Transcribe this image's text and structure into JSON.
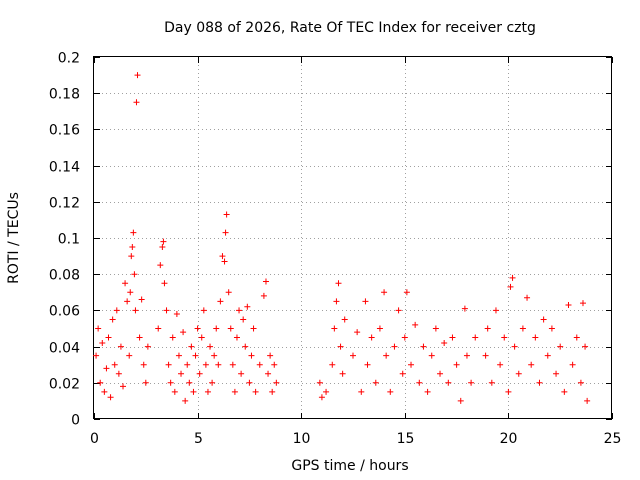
{
  "chart_data": {
    "type": "scatter",
    "title": "Day 088 of 2026, Rate Of TEC Index for receiver cztg",
    "xlabel": "GPS time / hours",
    "ylabel": "ROTI / TECUs",
    "xlim": [
      0,
      25
    ],
    "ylim": [
      0,
      0.2
    ],
    "x_ticks": [
      "0",
      "5",
      "10",
      "15",
      "20",
      "25"
    ],
    "y_ticks": [
      "0",
      "0.02",
      "0.04",
      "0.06",
      "0.08",
      "0.1",
      "0.12",
      "0.14",
      "0.16",
      "0.18",
      "0.2"
    ],
    "grid": true,
    "marker": "+",
    "color": "#ff0000",
    "series": [
      {
        "name": "ROTI",
        "points": [
          [
            0.1,
            0.035
          ],
          [
            0.2,
            0.05
          ],
          [
            0.3,
            0.02
          ],
          [
            0.4,
            0.042
          ],
          [
            0.5,
            0.015
          ],
          [
            0.6,
            0.028
          ],
          [
            0.7,
            0.045
          ],
          [
            0.8,
            0.012
          ],
          [
            0.9,
            0.055
          ],
          [
            1.0,
            0.03
          ],
          [
            1.1,
            0.06
          ],
          [
            1.2,
            0.025
          ],
          [
            1.3,
            0.04
          ],
          [
            1.4,
            0.018
          ],
          [
            1.5,
            0.075
          ],
          [
            1.6,
            0.065
          ],
          [
            1.7,
            0.035
          ],
          [
            1.75,
            0.07
          ],
          [
            1.8,
            0.09
          ],
          [
            1.85,
            0.095
          ],
          [
            1.9,
            0.103
          ],
          [
            1.95,
            0.08
          ],
          [
            2.0,
            0.06
          ],
          [
            2.05,
            0.175
          ],
          [
            2.1,
            0.19
          ],
          [
            2.2,
            0.045
          ],
          [
            2.3,
            0.066
          ],
          [
            2.4,
            0.03
          ],
          [
            2.5,
            0.02
          ],
          [
            2.6,
            0.04
          ],
          [
            3.1,
            0.05
          ],
          [
            3.2,
            0.085
          ],
          [
            3.3,
            0.095
          ],
          [
            3.35,
            0.098
          ],
          [
            3.4,
            0.075
          ],
          [
            3.5,
            0.06
          ],
          [
            3.6,
            0.03
          ],
          [
            3.7,
            0.02
          ],
          [
            3.8,
            0.045
          ],
          [
            3.9,
            0.015
          ],
          [
            4.0,
            0.058
          ],
          [
            4.1,
            0.035
          ],
          [
            4.2,
            0.025
          ],
          [
            4.3,
            0.048
          ],
          [
            4.4,
            0.01
          ],
          [
            4.5,
            0.03
          ],
          [
            4.6,
            0.02
          ],
          [
            4.7,
            0.04
          ],
          [
            4.8,
            0.015
          ],
          [
            4.9,
            0.035
          ],
          [
            5.0,
            0.05
          ],
          [
            5.1,
            0.025
          ],
          [
            5.2,
            0.045
          ],
          [
            5.3,
            0.06
          ],
          [
            5.4,
            0.03
          ],
          [
            5.5,
            0.015
          ],
          [
            5.6,
            0.04
          ],
          [
            5.7,
            0.02
          ],
          [
            5.8,
            0.035
          ],
          [
            5.9,
            0.05
          ],
          [
            6.0,
            0.03
          ],
          [
            6.1,
            0.065
          ],
          [
            6.2,
            0.09
          ],
          [
            6.3,
            0.087
          ],
          [
            6.35,
            0.103
          ],
          [
            6.4,
            0.113
          ],
          [
            6.5,
            0.07
          ],
          [
            6.6,
            0.05
          ],
          [
            6.7,
            0.03
          ],
          [
            6.8,
            0.015
          ],
          [
            6.9,
            0.045
          ],
          [
            7.0,
            0.06
          ],
          [
            7.1,
            0.025
          ],
          [
            7.2,
            0.055
          ],
          [
            7.3,
            0.04
          ],
          [
            7.4,
            0.062
          ],
          [
            7.5,
            0.02
          ],
          [
            7.6,
            0.035
          ],
          [
            7.7,
            0.05
          ],
          [
            7.8,
            0.015
          ],
          [
            8.0,
            0.03
          ],
          [
            8.2,
            0.068
          ],
          [
            8.3,
            0.076
          ],
          [
            8.4,
            0.025
          ],
          [
            8.5,
            0.035
          ],
          [
            8.6,
            0.015
          ],
          [
            8.7,
            0.03
          ],
          [
            8.8,
            0.02
          ],
          [
            10.9,
            0.02
          ],
          [
            11.0,
            0.012
          ],
          [
            11.2,
            0.015
          ],
          [
            11.5,
            0.03
          ],
          [
            11.6,
            0.05
          ],
          [
            11.7,
            0.065
          ],
          [
            11.8,
            0.075
          ],
          [
            11.9,
            0.04
          ],
          [
            12.0,
            0.025
          ],
          [
            12.1,
            0.055
          ],
          [
            12.5,
            0.035
          ],
          [
            12.7,
            0.048
          ],
          [
            12.9,
            0.015
          ],
          [
            13.1,
            0.065
          ],
          [
            13.2,
            0.03
          ],
          [
            13.4,
            0.045
          ],
          [
            13.6,
            0.02
          ],
          [
            13.8,
            0.05
          ],
          [
            14.0,
            0.07
          ],
          [
            14.1,
            0.035
          ],
          [
            14.3,
            0.015
          ],
          [
            14.5,
            0.04
          ],
          [
            14.7,
            0.06
          ],
          [
            14.9,
            0.025
          ],
          [
            15.0,
            0.045
          ],
          [
            15.1,
            0.07
          ],
          [
            15.3,
            0.03
          ],
          [
            15.5,
            0.052
          ],
          [
            15.7,
            0.02
          ],
          [
            15.9,
            0.04
          ],
          [
            16.1,
            0.015
          ],
          [
            16.3,
            0.035
          ],
          [
            16.5,
            0.05
          ],
          [
            16.7,
            0.025
          ],
          [
            16.9,
            0.042
          ],
          [
            17.1,
            0.02
          ],
          [
            17.3,
            0.045
          ],
          [
            17.5,
            0.03
          ],
          [
            17.7,
            0.01
          ],
          [
            17.9,
            0.061
          ],
          [
            18.0,
            0.035
          ],
          [
            18.2,
            0.02
          ],
          [
            18.4,
            0.045
          ],
          [
            18.9,
            0.035
          ],
          [
            19.0,
            0.05
          ],
          [
            19.2,
            0.02
          ],
          [
            19.4,
            0.06
          ],
          [
            19.6,
            0.03
          ],
          [
            19.8,
            0.045
          ],
          [
            20.0,
            0.015
          ],
          [
            20.1,
            0.073
          ],
          [
            20.2,
            0.078
          ],
          [
            20.3,
            0.04
          ],
          [
            20.5,
            0.025
          ],
          [
            20.7,
            0.05
          ],
          [
            20.9,
            0.067
          ],
          [
            21.1,
            0.03
          ],
          [
            21.3,
            0.045
          ],
          [
            21.5,
            0.02
          ],
          [
            21.7,
            0.055
          ],
          [
            21.9,
            0.035
          ],
          [
            22.1,
            0.05
          ],
          [
            22.3,
            0.025
          ],
          [
            22.5,
            0.04
          ],
          [
            22.7,
            0.015
          ],
          [
            22.9,
            0.063
          ],
          [
            23.1,
            0.03
          ],
          [
            23.3,
            0.045
          ],
          [
            23.5,
            0.02
          ],
          [
            23.6,
            0.064
          ],
          [
            23.7,
            0.04
          ],
          [
            23.8,
            0.01
          ]
        ]
      }
    ]
  }
}
